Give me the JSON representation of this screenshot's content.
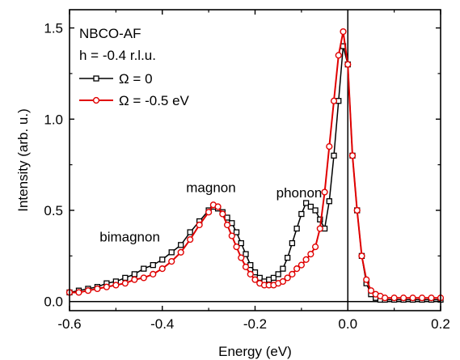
{
  "chart_data": {
    "type": "scatter",
    "xlabel": "Energy (eV)",
    "ylabel": "Intensity (arb. u.)",
    "xlim": [
      -0.6,
      0.2
    ],
    "ylim": [
      -0.05,
      1.6
    ],
    "xticks": [
      -0.6,
      -0.4,
      -0.2,
      0.0,
      0.2
    ],
    "xtick_labels": [
      "-0.6",
      "-0.4",
      "-0.2",
      "0.0",
      "0.2"
    ],
    "yticks": [
      0.0,
      0.5,
      1.0,
      1.5
    ],
    "ytick_labels": [
      "0.0",
      "0.5",
      "1.0",
      "1.5"
    ],
    "reference_lines": [
      {
        "orientation": "horizontal",
        "value": 0.0
      },
      {
        "orientation": "vertical",
        "value": 0.0
      }
    ],
    "legend": {
      "placement": "top-left",
      "title_lines": [
        "NBCO-AF",
        "h = -0.4 r.l.u."
      ]
    },
    "annotations": [
      {
        "text": "bimagnon",
        "x": -0.47,
        "y": 0.33
      },
      {
        "text": "magnon",
        "x": -0.295,
        "y": 0.6
      },
      {
        "text": "phonon",
        "x": -0.105,
        "y": 0.57
      }
    ],
    "series": [
      {
        "name": "Ω = 0",
        "color": "#000000",
        "marker": "square",
        "x": [
          -0.6,
          -0.58,
          -0.56,
          -0.54,
          -0.52,
          -0.5,
          -0.48,
          -0.46,
          -0.44,
          -0.42,
          -0.4,
          -0.38,
          -0.36,
          -0.34,
          -0.32,
          -0.3,
          -0.29,
          -0.28,
          -0.27,
          -0.26,
          -0.25,
          -0.24,
          -0.23,
          -0.22,
          -0.21,
          -0.2,
          -0.19,
          -0.18,
          -0.17,
          -0.16,
          -0.15,
          -0.14,
          -0.13,
          -0.12,
          -0.11,
          -0.1,
          -0.09,
          -0.08,
          -0.07,
          -0.06,
          -0.05,
          -0.04,
          -0.03,
          -0.02,
          -0.01,
          0.0,
          0.01,
          0.02,
          0.03,
          0.04,
          0.05,
          0.06,
          0.07,
          0.08,
          0.1,
          0.12,
          0.14,
          0.16,
          0.18,
          0.2
        ],
        "y": [
          0.05,
          0.06,
          0.07,
          0.08,
          0.1,
          0.11,
          0.13,
          0.15,
          0.18,
          0.2,
          0.23,
          0.27,
          0.31,
          0.38,
          0.44,
          0.5,
          0.52,
          0.51,
          0.49,
          0.46,
          0.43,
          0.38,
          0.32,
          0.26,
          0.2,
          0.16,
          0.13,
          0.11,
          0.12,
          0.13,
          0.15,
          0.18,
          0.24,
          0.32,
          0.4,
          0.48,
          0.54,
          0.52,
          0.5,
          0.45,
          0.4,
          0.55,
          0.8,
          1.1,
          1.4,
          1.3,
          0.8,
          0.5,
          0.25,
          0.1,
          0.04,
          0.02,
          0.01,
          0.01,
          0.01,
          0.01,
          0.01,
          0.01,
          0.01,
          0.01
        ]
      },
      {
        "name": "Ω = -0.5 eV",
        "color": "#e00000",
        "marker": "circle",
        "x": [
          -0.6,
          -0.58,
          -0.56,
          -0.54,
          -0.52,
          -0.5,
          -0.48,
          -0.46,
          -0.44,
          -0.42,
          -0.4,
          -0.38,
          -0.36,
          -0.34,
          -0.32,
          -0.3,
          -0.29,
          -0.28,
          -0.27,
          -0.26,
          -0.25,
          -0.24,
          -0.23,
          -0.22,
          -0.21,
          -0.2,
          -0.19,
          -0.18,
          -0.17,
          -0.16,
          -0.15,
          -0.14,
          -0.13,
          -0.12,
          -0.11,
          -0.1,
          -0.09,
          -0.08,
          -0.07,
          -0.06,
          -0.05,
          -0.04,
          -0.03,
          -0.02,
          -0.01,
          0.0,
          0.01,
          0.02,
          0.03,
          0.04,
          0.05,
          0.06,
          0.07,
          0.08,
          0.1,
          0.12,
          0.14,
          0.16,
          0.18,
          0.2
        ],
        "y": [
          0.05,
          0.05,
          0.06,
          0.07,
          0.08,
          0.09,
          0.1,
          0.12,
          0.13,
          0.15,
          0.18,
          0.22,
          0.27,
          0.34,
          0.42,
          0.49,
          0.53,
          0.52,
          0.48,
          0.42,
          0.36,
          0.3,
          0.24,
          0.19,
          0.15,
          0.12,
          0.1,
          0.09,
          0.09,
          0.09,
          0.1,
          0.11,
          0.13,
          0.15,
          0.18,
          0.2,
          0.23,
          0.26,
          0.3,
          0.4,
          0.6,
          0.85,
          1.1,
          1.35,
          1.48,
          1.3,
          0.8,
          0.5,
          0.25,
          0.12,
          0.06,
          0.04,
          0.03,
          0.02,
          0.02,
          0.02,
          0.02,
          0.02,
          0.02,
          0.02
        ]
      }
    ]
  }
}
